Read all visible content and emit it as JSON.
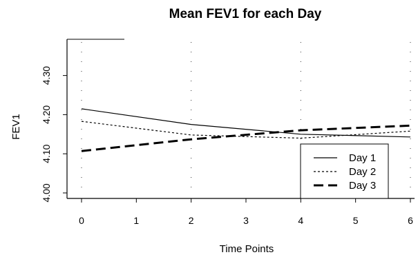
{
  "chart_data": {
    "type": "line",
    "title": "Mean FEV1 for each Day",
    "xlabel": "Time Points",
    "ylabel": "FEV1",
    "xlim": [
      0,
      6
    ],
    "ylim": [
      4.0,
      4.3
    ],
    "x_ticks": [
      "0",
      "1",
      "2",
      "3",
      "4",
      "5",
      "6"
    ],
    "y_ticks": [
      "4.00",
      "4.10",
      "4.20",
      "4.30"
    ],
    "x": [
      0,
      2,
      4,
      6
    ],
    "series": [
      {
        "name": "Day 1",
        "values": [
          4.215,
          4.175,
          4.15,
          4.143
        ],
        "line_style": "solid"
      },
      {
        "name": "Day 2",
        "values": [
          4.183,
          4.148,
          4.14,
          4.158
        ],
        "line_style": "dotted"
      },
      {
        "name": "Day 3",
        "values": [
          4.107,
          4.137,
          4.16,
          4.172
        ],
        "line_style": "dashed"
      }
    ],
    "grid": "dotted vertical at x = 0, 2, 4, 6",
    "legend_position": "bottom-right"
  }
}
